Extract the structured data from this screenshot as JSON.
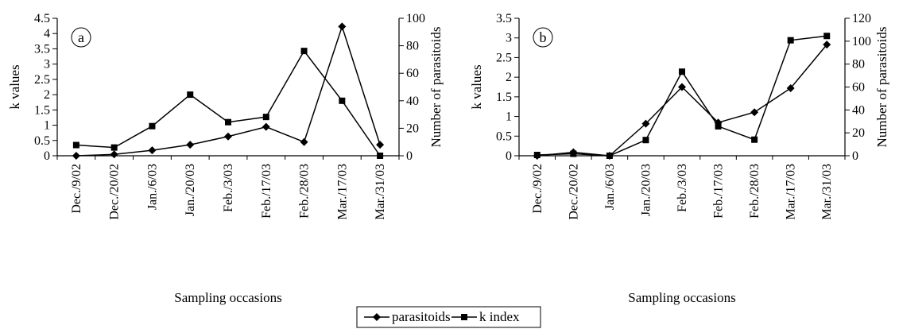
{
  "legend": {
    "entries": [
      {
        "label": "parasitoids",
        "marker": "diamond"
      },
      {
        "label": "k index",
        "marker": "square"
      }
    ],
    "placement": "bottom-center"
  },
  "chart_data": [
    {
      "type": "line",
      "panel_label": "a",
      "categories": [
        "Dec./9/02",
        "Dec./20/02",
        "Jan./6/03",
        "Jan./20/03",
        "Feb./3/03",
        "Feb./17/03",
        "Feb./28/03",
        "Mar./17/03",
        "Mar./31/03"
      ],
      "xlabel": "Sampling occasions",
      "ylabel": "k values",
      "y2label": "Number of parasitoids",
      "ylim": [
        0,
        4.5
      ],
      "y2lim": [
        0,
        100
      ],
      "yticks": [
        "0",
        "0.5",
        "1",
        "1.5",
        "2",
        "2.5",
        "3",
        "3.5",
        "4",
        "4.5"
      ],
      "y2ticks": [
        "0",
        "20",
        "40",
        "60",
        "80",
        "100"
      ],
      "grid": false,
      "series": [
        {
          "name": "parasitoids",
          "axis": "right",
          "marker": "diamond",
          "values": [
            0,
            1,
            4,
            8,
            14,
            21,
            10,
            94,
            8
          ]
        },
        {
          "name": "k index",
          "axis": "left",
          "marker": "square",
          "values": [
            0.35,
            0.27,
            0.97,
            2.0,
            1.1,
            1.27,
            3.43,
            1.8,
            0
          ]
        }
      ]
    },
    {
      "type": "line",
      "panel_label": "b",
      "categories": [
        "Dec./9/02",
        "Dec./20/02",
        "Jan./6/03",
        "Jan./20/03",
        "Feb./3/03",
        "Feb./17/03",
        "Feb./28/03",
        "Mar./17/03",
        "Mar./31/03"
      ],
      "xlabel": "Sampling occasions",
      "ylabel": "k values",
      "y2label": "Number of parasitoids",
      "ylim": [
        0,
        3.5
      ],
      "y2lim": [
        0,
        120
      ],
      "yticks": [
        "0",
        "0.5",
        "1",
        "1.5",
        "2",
        "2.5",
        "3",
        "3.5"
      ],
      "y2ticks": [
        "0",
        "20",
        "40",
        "60",
        "80",
        "100",
        "120"
      ],
      "grid": false,
      "series": [
        {
          "name": "parasitoids",
          "axis": "right",
          "marker": "diamond",
          "values": [
            0,
            3,
            0,
            28,
            60,
            29,
            38,
            59,
            97
          ]
        },
        {
          "name": "k index",
          "axis": "left",
          "marker": "square",
          "values": [
            0.02,
            0.05,
            0,
            0.4,
            2.14,
            0.75,
            0.41,
            2.94,
            3.05
          ]
        }
      ]
    }
  ]
}
